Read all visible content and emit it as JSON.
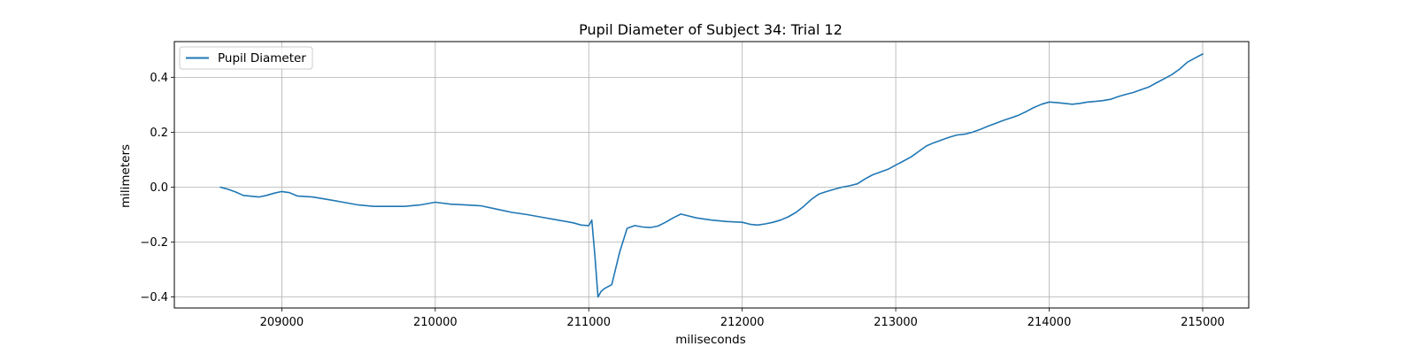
{
  "chart_data": {
    "type": "line",
    "title": "Pupil Diameter of Subject 34: Trial 12",
    "xlabel": "miliseconds",
    "ylabel": "milimeters",
    "xlim": [
      208300,
      215300
    ],
    "ylim": [
      -0.44,
      0.53
    ],
    "xticks": [
      209000,
      210000,
      211000,
      212000,
      213000,
      214000,
      215000
    ],
    "xtick_labels": [
      "209000",
      "210000",
      "211000",
      "212000",
      "213000",
      "214000",
      "215000"
    ],
    "yticks": [
      -0.4,
      -0.2,
      0.0,
      0.2,
      0.4
    ],
    "ytick_labels": [
      "−0.4",
      "−0.2",
      "0.0",
      "0.2",
      "0.4"
    ],
    "grid": true,
    "legend": {
      "location": "upper left",
      "entries": [
        "Pupil Diameter"
      ]
    },
    "series": [
      {
        "name": "Pupil Diameter",
        "color": "#1f77b4",
        "x": [
          208600,
          208650,
          208700,
          208750,
          208800,
          208850,
          208900,
          208950,
          209000,
          209050,
          209100,
          209200,
          209300,
          209400,
          209500,
          209600,
          209700,
          209800,
          209900,
          210000,
          210100,
          210200,
          210300,
          210400,
          210500,
          210600,
          210700,
          210800,
          210900,
          210950,
          211000,
          211020,
          211040,
          211060,
          211080,
          211100,
          211150,
          211200,
          211250,
          211300,
          211350,
          211400,
          211450,
          211500,
          211550,
          211600,
          211650,
          211700,
          211800,
          211900,
          212000,
          212050,
          212100,
          212150,
          212200,
          212250,
          212300,
          212350,
          212400,
          212450,
          212500,
          212550,
          212600,
          212650,
          212700,
          212750,
          212800,
          212850,
          212900,
          212950,
          213000,
          213050,
          213100,
          213150,
          213200,
          213250,
          213300,
          213350,
          213400,
          213450,
          213500,
          213550,
          213600,
          213650,
          213700,
          213750,
          213800,
          213850,
          213900,
          213950,
          214000,
          214050,
          214100,
          214150,
          214200,
          214250,
          214300,
          214350,
          214400,
          214450,
          214500,
          214550,
          214600,
          214650,
          214700,
          214750,
          214800,
          214850,
          214900,
          214950,
          215000
        ],
        "y": [
          0.0,
          -0.008,
          -0.018,
          -0.03,
          -0.033,
          -0.036,
          -0.03,
          -0.022,
          -0.016,
          -0.02,
          -0.032,
          -0.036,
          -0.045,
          -0.055,
          -0.065,
          -0.07,
          -0.07,
          -0.07,
          -0.065,
          -0.055,
          -0.062,
          -0.065,
          -0.068,
          -0.08,
          -0.092,
          -0.1,
          -0.11,
          -0.12,
          -0.13,
          -0.138,
          -0.14,
          -0.12,
          -0.25,
          -0.4,
          -0.38,
          -0.37,
          -0.355,
          -0.24,
          -0.15,
          -0.14,
          -0.145,
          -0.147,
          -0.142,
          -0.128,
          -0.112,
          -0.098,
          -0.105,
          -0.112,
          -0.12,
          -0.125,
          -0.128,
          -0.135,
          -0.138,
          -0.134,
          -0.128,
          -0.12,
          -0.108,
          -0.092,
          -0.07,
          -0.045,
          -0.025,
          -0.016,
          -0.008,
          0.0,
          0.005,
          0.012,
          0.03,
          0.045,
          0.055,
          0.065,
          0.08,
          0.095,
          0.11,
          0.13,
          0.15,
          0.162,
          0.172,
          0.182,
          0.19,
          0.193,
          0.2,
          0.21,
          0.222,
          0.232,
          0.243,
          0.252,
          0.262,
          0.275,
          0.29,
          0.302,
          0.31,
          0.308,
          0.305,
          0.302,
          0.305,
          0.31,
          0.312,
          0.315,
          0.32,
          0.33,
          0.338,
          0.345,
          0.355,
          0.365,
          0.38,
          0.395,
          0.41,
          0.43,
          0.455,
          0.47,
          0.485
        ]
      }
    ]
  }
}
